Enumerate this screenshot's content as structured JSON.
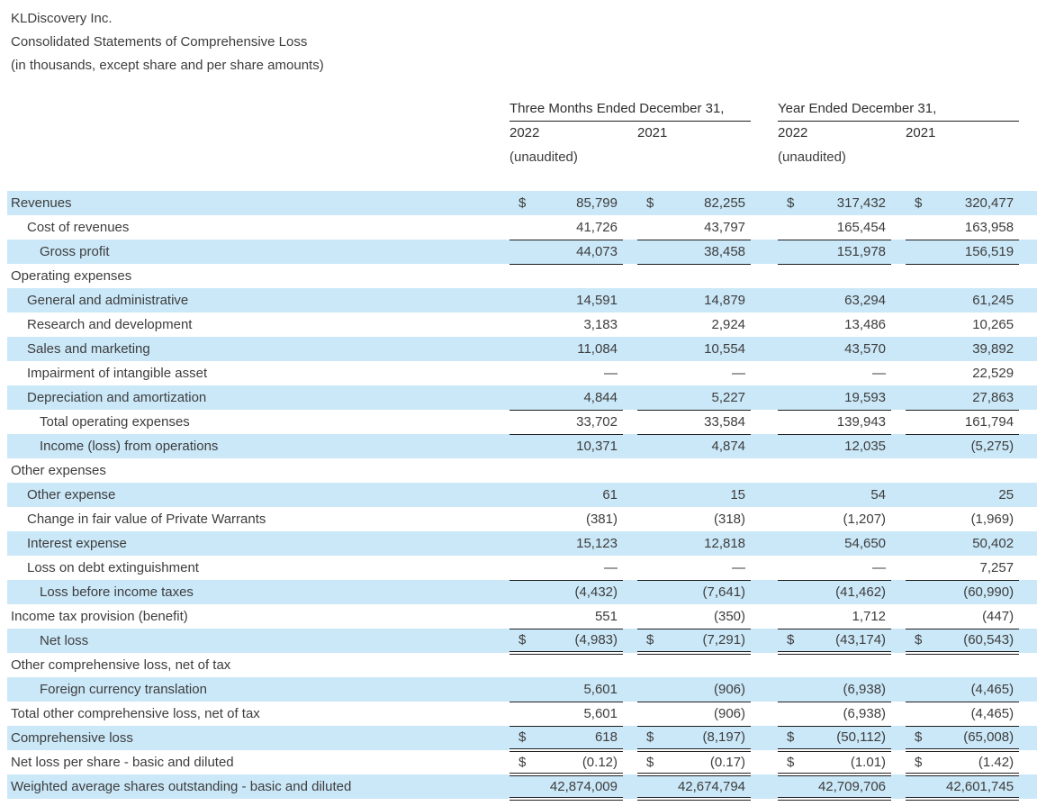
{
  "header": {
    "company": "KLDiscovery Inc.",
    "title": "Consolidated Statements of Comprehensive Loss",
    "units_note": "(in thousands, except share and per share amounts)"
  },
  "colors": {
    "row_highlight": "#cbe8f8",
    "text": "#3d3d3d",
    "rule": "#1f1f1f"
  },
  "table": {
    "currency_symbol": "$",
    "column_groups": [
      {
        "label": "Three Months Ended December 31,",
        "columns": [
          {
            "year": "2022",
            "note": "(unaudited)"
          },
          {
            "year": "2021",
            "note": ""
          }
        ]
      },
      {
        "label": "Year Ended December 31,",
        "columns": [
          {
            "year": "2022",
            "note": "(unaudited)"
          },
          {
            "year": "2021",
            "note": ""
          }
        ]
      }
    ],
    "rows": [
      {
        "label": "Revenues",
        "indent": 0,
        "highlight": true,
        "dollar": true,
        "border": "none",
        "values": [
          "85,799",
          "82,255",
          "317,432",
          "320,477"
        ]
      },
      {
        "label": "Cost of revenues",
        "indent": 1,
        "highlight": false,
        "dollar": false,
        "border": "single",
        "values": [
          "41,726",
          "43,797",
          "165,454",
          "163,958"
        ]
      },
      {
        "label": "Gross profit",
        "indent": 2,
        "highlight": true,
        "dollar": false,
        "border": "single",
        "values": [
          "44,073",
          "38,458",
          "151,978",
          "156,519"
        ]
      },
      {
        "label": "Operating expenses",
        "indent": 0,
        "highlight": false,
        "dollar": false,
        "border": "none",
        "values": [
          "",
          "",
          "",
          ""
        ]
      },
      {
        "label": "General and administrative",
        "indent": 1,
        "highlight": true,
        "dollar": false,
        "border": "none",
        "values": [
          "14,591",
          "14,879",
          "63,294",
          "61,245"
        ]
      },
      {
        "label": "Research and development",
        "indent": 1,
        "highlight": false,
        "dollar": false,
        "border": "none",
        "values": [
          "3,183",
          "2,924",
          "13,486",
          "10,265"
        ]
      },
      {
        "label": "Sales and marketing",
        "indent": 1,
        "highlight": true,
        "dollar": false,
        "border": "none",
        "values": [
          "11,084",
          "10,554",
          "43,570",
          "39,892"
        ]
      },
      {
        "label": "Impairment of intangible asset",
        "indent": 1,
        "highlight": false,
        "dollar": false,
        "border": "none",
        "values": [
          "—",
          "—",
          "—",
          "22,529"
        ]
      },
      {
        "label": "Depreciation and amortization",
        "indent": 1,
        "highlight": true,
        "dollar": false,
        "border": "single",
        "values": [
          "4,844",
          "5,227",
          "19,593",
          "27,863"
        ]
      },
      {
        "label": "Total operating expenses",
        "indent": 2,
        "highlight": false,
        "dollar": false,
        "border": "single",
        "values": [
          "33,702",
          "33,584",
          "139,943",
          "161,794"
        ]
      },
      {
        "label": "Income (loss) from operations",
        "indent": 2,
        "highlight": true,
        "dollar": false,
        "border": "none",
        "values": [
          "10,371",
          "4,874",
          "12,035",
          "(5,275)"
        ]
      },
      {
        "label": "Other expenses",
        "indent": 0,
        "highlight": false,
        "dollar": false,
        "border": "none",
        "values": [
          "",
          "",
          "",
          ""
        ]
      },
      {
        "label": "Other expense",
        "indent": 1,
        "highlight": true,
        "dollar": false,
        "border": "none",
        "values": [
          "61",
          "15",
          "54",
          "25"
        ]
      },
      {
        "label": "Change in fair value of Private Warrants",
        "indent": 1,
        "highlight": false,
        "dollar": false,
        "border": "none",
        "values": [
          "(381)",
          "(318)",
          "(1,207)",
          "(1,969)"
        ]
      },
      {
        "label": "Interest expense",
        "indent": 1,
        "highlight": true,
        "dollar": false,
        "border": "none",
        "values": [
          "15,123",
          "12,818",
          "54,650",
          "50,402"
        ]
      },
      {
        "label": "Loss on debt extinguishment",
        "indent": 1,
        "highlight": false,
        "dollar": false,
        "border": "single",
        "values": [
          "—",
          "—",
          "—",
          "7,257"
        ]
      },
      {
        "label": "Loss before income taxes",
        "indent": 2,
        "highlight": true,
        "dollar": false,
        "border": "none",
        "values": [
          "(4,432)",
          "(7,641)",
          "(41,462)",
          "(60,990)"
        ]
      },
      {
        "label": "Income tax provision (benefit)",
        "indent": 0,
        "highlight": false,
        "dollar": false,
        "border": "single",
        "values": [
          "551",
          "(350)",
          "1,712",
          "(447)"
        ]
      },
      {
        "label": "Net loss",
        "indent": 2,
        "highlight": true,
        "dollar": true,
        "border": "double",
        "values": [
          "(4,983)",
          "(7,291)",
          "(43,174)",
          "(60,543)"
        ]
      },
      {
        "label": "Other comprehensive loss, net of tax",
        "indent": 0,
        "highlight": false,
        "dollar": false,
        "border": "none",
        "values": [
          "",
          "",
          "",
          ""
        ]
      },
      {
        "label": "Foreign currency translation",
        "indent": 2,
        "highlight": true,
        "dollar": false,
        "border": "single",
        "values": [
          "5,601",
          "(906)",
          "(6,938)",
          "(4,465)"
        ]
      },
      {
        "label": "Total other comprehensive loss, net of tax",
        "indent": 0,
        "highlight": false,
        "dollar": false,
        "border": "single",
        "values": [
          "5,601",
          "(906)",
          "(6,938)",
          "(4,465)"
        ]
      },
      {
        "label": "Comprehensive loss",
        "indent": 0,
        "highlight": true,
        "dollar": true,
        "border": "double",
        "values": [
          "618",
          "(8,197)",
          "(50,112)",
          "(65,008)"
        ]
      },
      {
        "label": "Net loss per share - basic and diluted",
        "indent": 0,
        "highlight": false,
        "dollar": true,
        "border": "double",
        "values": [
          "(0.12)",
          "(0.17)",
          "(1.01)",
          "(1.42)"
        ]
      },
      {
        "label": "Weighted average shares outstanding - basic and diluted",
        "indent": 0,
        "highlight": true,
        "dollar": false,
        "border": "double",
        "values": [
          "42,874,009",
          "42,674,794",
          "42,709,706",
          "42,601,745"
        ]
      }
    ]
  }
}
